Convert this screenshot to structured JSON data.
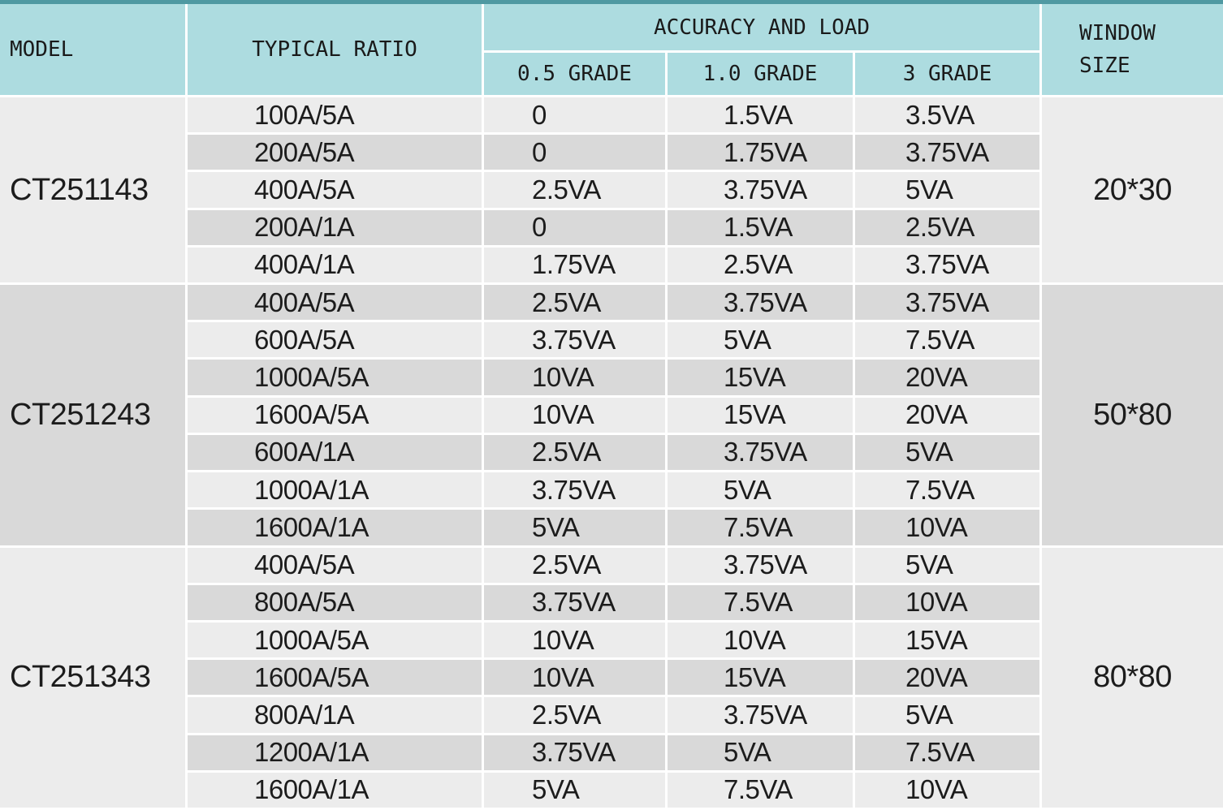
{
  "colors": {
    "header_teal": "#addce0",
    "top_strip_teal": "#4f99a2",
    "row_light": "#ececec",
    "row_dark": "#d9d9d9",
    "grid_line": "#ffffff",
    "text": "#1c1c1c"
  },
  "header": {
    "model": "MODEL",
    "typical_ratio": "TYPICAL RATIO",
    "accuracy_and_load": "ACCURACY AND LOAD",
    "grade_05": "0.5 GRADE",
    "grade_10": "1.0 GRADE",
    "grade_3": "3 GRADE",
    "window_size": "WINDOW\nSIZE"
  },
  "groups": [
    {
      "model": "CT251143",
      "window": "20*30",
      "rows": [
        {
          "r": "100A/5A",
          "g05": "0",
          "g10": "1.5VA",
          "g3": "3.5VA"
        },
        {
          "r": "200A/5A",
          "g05": "0",
          "g10": "1.75VA",
          "g3": "3.75VA"
        },
        {
          "r": "400A/5A",
          "g05": "2.5VA",
          "g10": "3.75VA",
          "g3": "5VA"
        },
        {
          "r": "200A/1A",
          "g05": "0",
          "g10": "1.5VA",
          "g3": "2.5VA"
        },
        {
          "r": "400A/1A",
          "g05": "1.75VA",
          "g10": "2.5VA",
          "g3": "3.75VA"
        }
      ]
    },
    {
      "model": "CT251243",
      "window": "50*80",
      "rows": [
        {
          "r": "400A/5A",
          "g05": "2.5VA",
          "g10": "3.75VA",
          "g3": "3.75VA"
        },
        {
          "r": "600A/5A",
          "g05": "3.75VA",
          "g10": "5VA",
          "g3": "7.5VA"
        },
        {
          "r": "1000A/5A",
          "g05": "10VA",
          "g10": "15VA",
          "g3": "20VA"
        },
        {
          "r": "1600A/5A",
          "g05": "10VA",
          "g10": "15VA",
          "g3": "20VA"
        },
        {
          "r": "600A/1A",
          "g05": "2.5VA",
          "g10": "3.75VA",
          "g3": "5VA"
        },
        {
          "r": "1000A/1A",
          "g05": "3.75VA",
          "g10": "5VA",
          "g3": "7.5VA"
        },
        {
          "r": "1600A/1A",
          "g05": "5VA",
          "g10": "7.5VA",
          "g3": "10VA"
        }
      ]
    },
    {
      "model": "CT251343",
      "window": "80*80",
      "rows": [
        {
          "r": "400A/5A",
          "g05": "2.5VA",
          "g10": "3.75VA",
          "g3": "5VA"
        },
        {
          "r": "800A/5A",
          "g05": "3.75VA",
          "g10": "7.5VA",
          "g3": "10VA"
        },
        {
          "r": "1000A/5A",
          "g05": "10VA",
          "g10": "10VA",
          "g3": "15VA"
        },
        {
          "r": "1600A/5A",
          "g05": "10VA",
          "g10": "15VA",
          "g3": "20VA"
        },
        {
          "r": "800A/1A",
          "g05": "2.5VA",
          "g10": "3.75VA",
          "g3": "5VA"
        },
        {
          "r": "1200A/1A",
          "g05": "3.75VA",
          "g10": "5VA",
          "g3": "7.5VA"
        },
        {
          "r": "1600A/1A",
          "g05": "5VA",
          "g10": "7.5VA",
          "g3": "10VA"
        }
      ]
    }
  ],
  "chart_data": {
    "type": "table",
    "columns": [
      "MODEL",
      "TYPICAL RATIO",
      "0.5 GRADE",
      "1.0 GRADE",
      "3 GRADE",
      "WINDOW SIZE"
    ],
    "rows": [
      [
        "CT251143",
        "100A/5A",
        "0",
        "1.5VA",
        "3.5VA",
        "20*30"
      ],
      [
        "CT251143",
        "200A/5A",
        "0",
        "1.75VA",
        "3.75VA",
        "20*30"
      ],
      [
        "CT251143",
        "400A/5A",
        "2.5VA",
        "3.75VA",
        "5VA",
        "20*30"
      ],
      [
        "CT251143",
        "200A/1A",
        "0",
        "1.5VA",
        "2.5VA",
        "20*30"
      ],
      [
        "CT251143",
        "400A/1A",
        "1.75VA",
        "2.5VA",
        "3.75VA",
        "20*30"
      ],
      [
        "CT251243",
        "400A/5A",
        "2.5VA",
        "3.75VA",
        "3.75VA",
        "50*80"
      ],
      [
        "CT251243",
        "600A/5A",
        "3.75VA",
        "5VA",
        "7.5VA",
        "50*80"
      ],
      [
        "CT251243",
        "1000A/5A",
        "10VA",
        "15VA",
        "20VA",
        "50*80"
      ],
      [
        "CT251243",
        "1600A/5A",
        "10VA",
        "15VA",
        "20VA",
        "50*80"
      ],
      [
        "CT251243",
        "600A/1A",
        "2.5VA",
        "3.75VA",
        "5VA",
        "50*80"
      ],
      [
        "CT251243",
        "1000A/1A",
        "3.75VA",
        "5VA",
        "7.5VA",
        "50*80"
      ],
      [
        "CT251243",
        "1600A/1A",
        "5VA",
        "7.5VA",
        "10VA",
        "50*80"
      ],
      [
        "CT251343",
        "400A/5A",
        "2.5VA",
        "3.75VA",
        "5VA",
        "80*80"
      ],
      [
        "CT251343",
        "800A/5A",
        "3.75VA",
        "7.5VA",
        "10VA",
        "80*80"
      ],
      [
        "CT251343",
        "1000A/5A",
        "10VA",
        "10VA",
        "15VA",
        "80*80"
      ],
      [
        "CT251343",
        "1600A/5A",
        "10VA",
        "15VA",
        "20VA",
        "80*80"
      ],
      [
        "CT251343",
        "800A/1A",
        "2.5VA",
        "3.75VA",
        "5VA",
        "80*80"
      ],
      [
        "CT251343",
        "1200A/1A",
        "3.75VA",
        "5VA",
        "7.5VA",
        "80*80"
      ],
      [
        "CT251343",
        "1600A/1A",
        "5VA",
        "7.5VA",
        "10VA",
        "80*80"
      ]
    ]
  }
}
